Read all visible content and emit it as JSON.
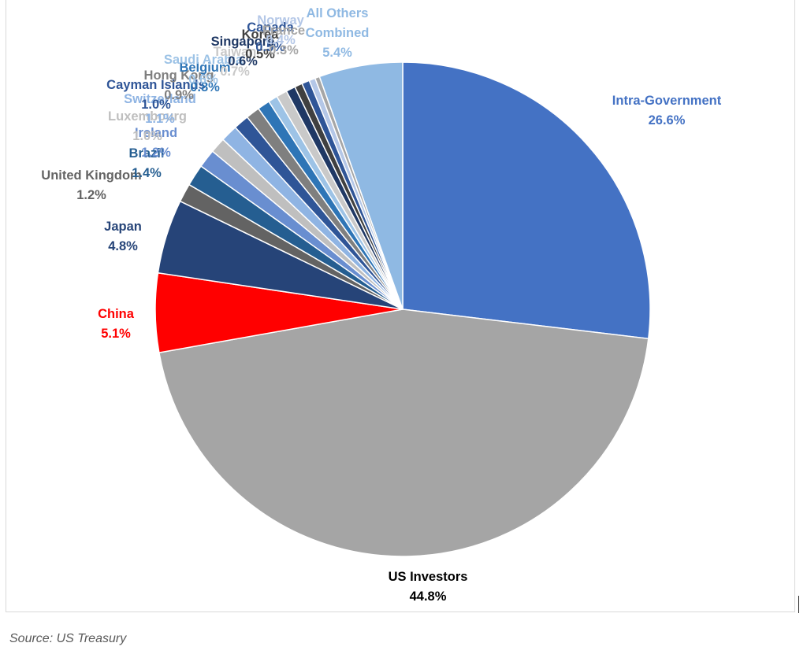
{
  "source": "Source: US Treasury",
  "chart_data": {
    "type": "pie",
    "title": "",
    "start_angle_deg": 0,
    "direction": "clockwise",
    "slices": [
      {
        "label": "Intra-Government",
        "value_label": "26.6%",
        "value": 26.6,
        "color": "#4472C4",
        "label_color": "#4472C4"
      },
      {
        "label": "US Investors",
        "value_label": "44.8%",
        "value": 44.8,
        "color": "#A5A5A5",
        "label_color": "#000000"
      },
      {
        "label": "China",
        "value_label": "5.1%",
        "value": 5.1,
        "color": "#FF0000",
        "label_color": "#FF0000"
      },
      {
        "label": "Japan",
        "value_label": "4.8%",
        "value": 4.8,
        "color": "#264478",
        "label_color": "#264478"
      },
      {
        "label": "United Kingdom",
        "value_label": "1.2%",
        "value": 1.2,
        "color": "#636363",
        "label_color": "#636363"
      },
      {
        "label": "Brazil",
        "value_label": "1.4%",
        "value": 1.4,
        "color": "#255E91",
        "label_color": "#255E91"
      },
      {
        "label": "Ireland",
        "value_label": "1.2%",
        "value": 1.2,
        "color": "#698ED0",
        "label_color": "#698ED0"
      },
      {
        "label": "Luxembourg",
        "value_label": "1.0%",
        "value": 1.0,
        "color": "#BFBFBF",
        "label_color": "#BFBFBF"
      },
      {
        "label": "Switzerland",
        "value_label": "1.1%",
        "value": 1.1,
        "color": "#8FB4E3",
        "label_color": "#8FB4E3"
      },
      {
        "label": "Cayman Islands",
        "value_label": "1.0%",
        "value": 1.0,
        "color": "#2F5597",
        "label_color": "#2F5597"
      },
      {
        "label": "Hong Kong",
        "value_label": "0.9%",
        "value": 0.9,
        "color": "#7F7F7F",
        "label_color": "#7F7F7F"
      },
      {
        "label": "Belgium",
        "value_label": "0.8%",
        "value": 0.8,
        "color": "#2E75B6",
        "label_color": "#2E75B6"
      },
      {
        "label": "Saudi Arabia",
        "value_label": "0.6%",
        "value": 0.6,
        "color": "#9DC3E6",
        "label_color": "#9DC3E6"
      },
      {
        "label": "Taiwan",
        "value_label": "0.7%",
        "value": 0.7,
        "color": "#C9C9C9",
        "label_color": "#C9C9C9"
      },
      {
        "label": "Singapore",
        "value_label": "0.6%",
        "value": 0.6,
        "color": "#1F3864",
        "label_color": "#1F3864"
      },
      {
        "label": "Korea",
        "value_label": "0.5%",
        "value": 0.5,
        "color": "#404040",
        "label_color": "#404040"
      },
      {
        "label": "Canada",
        "value_label": "0.5%",
        "value": 0.5,
        "color": "#2F5597",
        "label_color": "#2F5597"
      },
      {
        "label": "Norway",
        "value_label": "0.4%",
        "value": 0.4,
        "color": "#B4C7E7",
        "label_color": "#B4C7E7"
      },
      {
        "label": "France",
        "value_label": "0.3%",
        "value": 0.3,
        "color": "#A6A6A6",
        "label_color": "#A6A6A6"
      },
      {
        "label": "All Others Combined",
        "value_label": "5.4%",
        "value": 5.4,
        "color": "#8FB9E3",
        "label_color": "#8FB9E3"
      }
    ]
  }
}
